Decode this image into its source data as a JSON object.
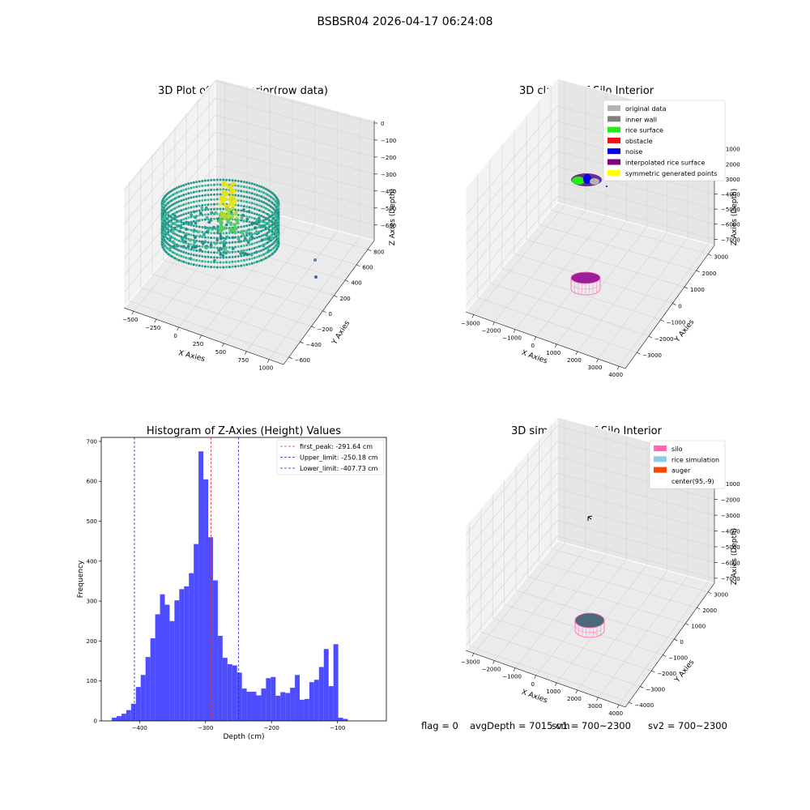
{
  "figure": {
    "suptitle": "BSBSR04 2026-04-17 06:24:08"
  },
  "status": {
    "flag": "flag = 0",
    "avg_depth": "avgDepth = 7015 cm",
    "sv1": "sv1 = 700~2300",
    "sv2": "sv2 = 700~2300"
  },
  "colors": {
    "hist_bar": "#4d4dff",
    "first_peak": "#e53030",
    "limits": "#2424d6",
    "silo": "#ff69b4",
    "rice_simulation": "#87ceeb",
    "auger": "#ff4500",
    "original_data": "#b3b3b3",
    "inner_wall": "#808080",
    "rice_surface": "#22ee11",
    "obstacle": "#ee1111",
    "noise": "#0000ee",
    "interpolated": "#800080",
    "symmetric": "#ffff00"
  },
  "chart_data": [
    {
      "type": "scatter",
      "title": "3D Plot of Silo Interior(row data)",
      "xlabel": "X Axies",
      "ylabel": "Y Axies",
      "zlabel": "Z Axies (Depth)",
      "xticks": [
        "−500",
        "−250",
        "0",
        "250",
        "500",
        "750",
        "1000"
      ],
      "yticks": [
        "−600",
        "−400",
        "−200",
        "0",
        "200",
        "400",
        "600",
        "800"
      ],
      "zticks": [
        "0",
        "−100",
        "−200",
        "−300",
        "−400",
        "−500",
        "−600"
      ],
      "xlim": [
        -600,
        1100
      ],
      "ylim": [
        -700,
        900
      ],
      "zlim": [
        -650,
        0
      ],
      "grid": true
    },
    {
      "type": "scatter",
      "title": "3D classify of Silo Interior",
      "xlabel": "X Axies",
      "ylabel": "Y Axies",
      "zlabel": "Z Axies (Depth)",
      "xticks": [
        "−3000",
        "−2000",
        "−1000",
        "0",
        "1000",
        "2000",
        "3000",
        "4000"
      ],
      "yticks": [
        "−3000",
        "−2000",
        "−1000",
        "0",
        "1000",
        "2000",
        "3000"
      ],
      "zticks": [
        "−1000",
        "−2000",
        "−3000",
        "−4000",
        "−5000",
        "−6000",
        "−7000"
      ],
      "xlim": [
        -3500,
        4200
      ],
      "ylim": [
        -3500,
        3500
      ],
      "zlim": [
        -7500,
        0
      ],
      "legend": {
        "placement": "top-right",
        "entries": [
          {
            "label": "original data",
            "color": "#b3b3b3"
          },
          {
            "label": "inner wall",
            "color": "#808080"
          },
          {
            "label": "rice surface",
            "color": "#22ee11"
          },
          {
            "label": "obstacle",
            "color": "#ee1111"
          },
          {
            "label": "noise",
            "color": "#0000ee"
          },
          {
            "label": "interpolated rice surface",
            "color": "#800080"
          },
          {
            "label": "symmetric generated points",
            "color": "#ffff00"
          }
        ]
      },
      "grid": true
    },
    {
      "type": "bar",
      "title": "Histogram of Z-Axies (Height) Values",
      "xlabel": "Depth (cm)",
      "ylabel": "Frequency",
      "xlim": [
        -458,
        -26
      ],
      "ylim": [
        0,
        710
      ],
      "xticks": [
        -400,
        -300,
        -200,
        -100
      ],
      "xtick_labels": [
        "−400",
        "−300",
        "−200",
        "−100"
      ],
      "yticks": [
        0,
        100,
        200,
        300,
        400,
        500,
        600,
        700
      ],
      "bin_start": -442,
      "bin_width": 7.3,
      "values": [
        8,
        12,
        18,
        27,
        43,
        85,
        115,
        160,
        207,
        267,
        317,
        291,
        250,
        302,
        330,
        337,
        370,
        443,
        675,
        605,
        460,
        352,
        213,
        158,
        142,
        139,
        121,
        81,
        73,
        73,
        64,
        81,
        107,
        110,
        63,
        72,
        70,
        83,
        115,
        53,
        55,
        97,
        103,
        135,
        180,
        87,
        192,
        8,
        5
      ],
      "vlines": [
        {
          "x": -291.64,
          "label": "first_peak: -291.64 cm",
          "color": "#e53030"
        },
        {
          "x": -250.18,
          "label": "Upper_limit: -250.18 cm",
          "color": "#2424d6"
        },
        {
          "x": -407.73,
          "label": "Lower_limit: -407.73 cm",
          "color": "#2424d6"
        }
      ],
      "legend": "top-right"
    },
    {
      "type": "scatter",
      "title": "3D simulation of Silo Interior",
      "xlabel": "X Axies",
      "ylabel": "Y Axies",
      "zlabel": "Z Axies (Depth)",
      "xticks": [
        "−3000",
        "−2000",
        "−1000",
        "0",
        "1000",
        "2000",
        "3000",
        "4000"
      ],
      "yticks": [
        "−4000",
        "−3000",
        "−2000",
        "−1000",
        "0",
        "1000",
        "2000",
        "3000"
      ],
      "zticks": [
        "0",
        "−1000",
        "−2000",
        "−3000",
        "−4000",
        "−5000",
        "−6000",
        "−7000"
      ],
      "xlim": [
        -3500,
        4200
      ],
      "ylim": [
        -4200,
        3600
      ],
      "zlim": [
        -7500,
        300
      ],
      "legend": {
        "placement": "top-right",
        "entries": [
          {
            "label": "silo",
            "color": "#ff69b4"
          },
          {
            "label": "rice simulation",
            "color": "#87ceeb"
          },
          {
            "label": "auger",
            "color": "#ff4500"
          },
          {
            "label": "center(95,-9)",
            "color": ""
          }
        ]
      },
      "grid": true
    }
  ]
}
